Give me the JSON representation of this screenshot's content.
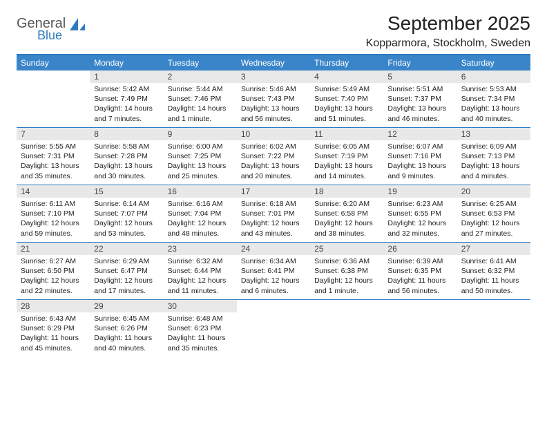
{
  "logo": {
    "word1": "General",
    "word2": "Blue"
  },
  "title": "September 2025",
  "location": "Kopparmora, Stockholm, Sweden",
  "colors": {
    "header_bg": "#3a85c9",
    "rule": "#2f7ac0",
    "daynum_bg": "#e8e8e8",
    "text": "#222222",
    "logo_blue": "#2f7ac0",
    "logo_grey": "#555555"
  },
  "day_names": [
    "Sunday",
    "Monday",
    "Tuesday",
    "Wednesday",
    "Thursday",
    "Friday",
    "Saturday"
  ],
  "weeks": [
    [
      {
        "n": "",
        "sunrise": "",
        "sunset": "",
        "day1": "",
        "day2": ""
      },
      {
        "n": "1",
        "sunrise": "Sunrise: 5:42 AM",
        "sunset": "Sunset: 7:49 PM",
        "day1": "Daylight: 14 hours",
        "day2": "and 7 minutes."
      },
      {
        "n": "2",
        "sunrise": "Sunrise: 5:44 AM",
        "sunset": "Sunset: 7:46 PM",
        "day1": "Daylight: 14 hours",
        "day2": "and 1 minute."
      },
      {
        "n": "3",
        "sunrise": "Sunrise: 5:46 AM",
        "sunset": "Sunset: 7:43 PM",
        "day1": "Daylight: 13 hours",
        "day2": "and 56 minutes."
      },
      {
        "n": "4",
        "sunrise": "Sunrise: 5:49 AM",
        "sunset": "Sunset: 7:40 PM",
        "day1": "Daylight: 13 hours",
        "day2": "and 51 minutes."
      },
      {
        "n": "5",
        "sunrise": "Sunrise: 5:51 AM",
        "sunset": "Sunset: 7:37 PM",
        "day1": "Daylight: 13 hours",
        "day2": "and 46 minutes."
      },
      {
        "n": "6",
        "sunrise": "Sunrise: 5:53 AM",
        "sunset": "Sunset: 7:34 PM",
        "day1": "Daylight: 13 hours",
        "day2": "and 40 minutes."
      }
    ],
    [
      {
        "n": "7",
        "sunrise": "Sunrise: 5:55 AM",
        "sunset": "Sunset: 7:31 PM",
        "day1": "Daylight: 13 hours",
        "day2": "and 35 minutes."
      },
      {
        "n": "8",
        "sunrise": "Sunrise: 5:58 AM",
        "sunset": "Sunset: 7:28 PM",
        "day1": "Daylight: 13 hours",
        "day2": "and 30 minutes."
      },
      {
        "n": "9",
        "sunrise": "Sunrise: 6:00 AM",
        "sunset": "Sunset: 7:25 PM",
        "day1": "Daylight: 13 hours",
        "day2": "and 25 minutes."
      },
      {
        "n": "10",
        "sunrise": "Sunrise: 6:02 AM",
        "sunset": "Sunset: 7:22 PM",
        "day1": "Daylight: 13 hours",
        "day2": "and 20 minutes."
      },
      {
        "n": "11",
        "sunrise": "Sunrise: 6:05 AM",
        "sunset": "Sunset: 7:19 PM",
        "day1": "Daylight: 13 hours",
        "day2": "and 14 minutes."
      },
      {
        "n": "12",
        "sunrise": "Sunrise: 6:07 AM",
        "sunset": "Sunset: 7:16 PM",
        "day1": "Daylight: 13 hours",
        "day2": "and 9 minutes."
      },
      {
        "n": "13",
        "sunrise": "Sunrise: 6:09 AM",
        "sunset": "Sunset: 7:13 PM",
        "day1": "Daylight: 13 hours",
        "day2": "and 4 minutes."
      }
    ],
    [
      {
        "n": "14",
        "sunrise": "Sunrise: 6:11 AM",
        "sunset": "Sunset: 7:10 PM",
        "day1": "Daylight: 12 hours",
        "day2": "and 59 minutes."
      },
      {
        "n": "15",
        "sunrise": "Sunrise: 6:14 AM",
        "sunset": "Sunset: 7:07 PM",
        "day1": "Daylight: 12 hours",
        "day2": "and 53 minutes."
      },
      {
        "n": "16",
        "sunrise": "Sunrise: 6:16 AM",
        "sunset": "Sunset: 7:04 PM",
        "day1": "Daylight: 12 hours",
        "day2": "and 48 minutes."
      },
      {
        "n": "17",
        "sunrise": "Sunrise: 6:18 AM",
        "sunset": "Sunset: 7:01 PM",
        "day1": "Daylight: 12 hours",
        "day2": "and 43 minutes."
      },
      {
        "n": "18",
        "sunrise": "Sunrise: 6:20 AM",
        "sunset": "Sunset: 6:58 PM",
        "day1": "Daylight: 12 hours",
        "day2": "and 38 minutes."
      },
      {
        "n": "19",
        "sunrise": "Sunrise: 6:23 AM",
        "sunset": "Sunset: 6:55 PM",
        "day1": "Daylight: 12 hours",
        "day2": "and 32 minutes."
      },
      {
        "n": "20",
        "sunrise": "Sunrise: 6:25 AM",
        "sunset": "Sunset: 6:53 PM",
        "day1": "Daylight: 12 hours",
        "day2": "and 27 minutes."
      }
    ],
    [
      {
        "n": "21",
        "sunrise": "Sunrise: 6:27 AM",
        "sunset": "Sunset: 6:50 PM",
        "day1": "Daylight: 12 hours",
        "day2": "and 22 minutes."
      },
      {
        "n": "22",
        "sunrise": "Sunrise: 6:29 AM",
        "sunset": "Sunset: 6:47 PM",
        "day1": "Daylight: 12 hours",
        "day2": "and 17 minutes."
      },
      {
        "n": "23",
        "sunrise": "Sunrise: 6:32 AM",
        "sunset": "Sunset: 6:44 PM",
        "day1": "Daylight: 12 hours",
        "day2": "and 11 minutes."
      },
      {
        "n": "24",
        "sunrise": "Sunrise: 6:34 AM",
        "sunset": "Sunset: 6:41 PM",
        "day1": "Daylight: 12 hours",
        "day2": "and 6 minutes."
      },
      {
        "n": "25",
        "sunrise": "Sunrise: 6:36 AM",
        "sunset": "Sunset: 6:38 PM",
        "day1": "Daylight: 12 hours",
        "day2": "and 1 minute."
      },
      {
        "n": "26",
        "sunrise": "Sunrise: 6:39 AM",
        "sunset": "Sunset: 6:35 PM",
        "day1": "Daylight: 11 hours",
        "day2": "and 56 minutes."
      },
      {
        "n": "27",
        "sunrise": "Sunrise: 6:41 AM",
        "sunset": "Sunset: 6:32 PM",
        "day1": "Daylight: 11 hours",
        "day2": "and 50 minutes."
      }
    ],
    [
      {
        "n": "28",
        "sunrise": "Sunrise: 6:43 AM",
        "sunset": "Sunset: 6:29 PM",
        "day1": "Daylight: 11 hours",
        "day2": "and 45 minutes."
      },
      {
        "n": "29",
        "sunrise": "Sunrise: 6:45 AM",
        "sunset": "Sunset: 6:26 PM",
        "day1": "Daylight: 11 hours",
        "day2": "and 40 minutes."
      },
      {
        "n": "30",
        "sunrise": "Sunrise: 6:48 AM",
        "sunset": "Sunset: 6:23 PM",
        "day1": "Daylight: 11 hours",
        "day2": "and 35 minutes."
      },
      {
        "n": "",
        "sunrise": "",
        "sunset": "",
        "day1": "",
        "day2": ""
      },
      {
        "n": "",
        "sunrise": "",
        "sunset": "",
        "day1": "",
        "day2": ""
      },
      {
        "n": "",
        "sunrise": "",
        "sunset": "",
        "day1": "",
        "day2": ""
      },
      {
        "n": "",
        "sunrise": "",
        "sunset": "",
        "day1": "",
        "day2": ""
      }
    ]
  ]
}
